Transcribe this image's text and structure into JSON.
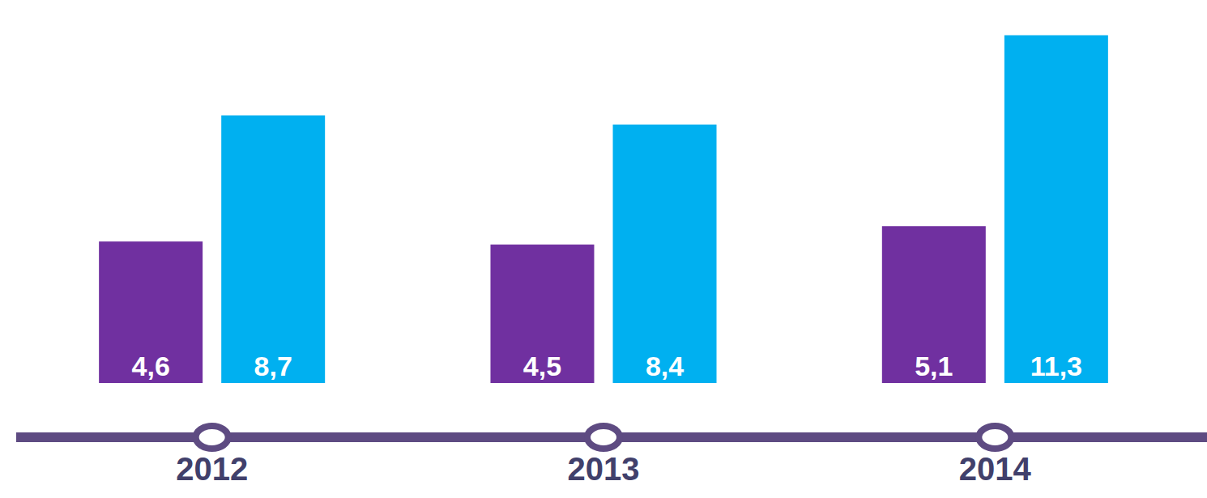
{
  "chart_data": {
    "type": "bar",
    "categories": [
      "2012",
      "2013",
      "2014"
    ],
    "series": [
      {
        "color": "#7030a0",
        "values": [
          4.6,
          4.5,
          5.1
        ],
        "value_labels": [
          "4,6",
          "4,5",
          "5,1"
        ]
      },
      {
        "color": "#00b0f0",
        "values": [
          8.7,
          8.4,
          11.3
        ],
        "value_labels": [
          "8,7",
          "8,4",
          "11,3"
        ]
      }
    ],
    "ylim": [
      0,
      12
    ],
    "data_labels": true,
    "tick_labels": "x",
    "grid": false
  }
}
